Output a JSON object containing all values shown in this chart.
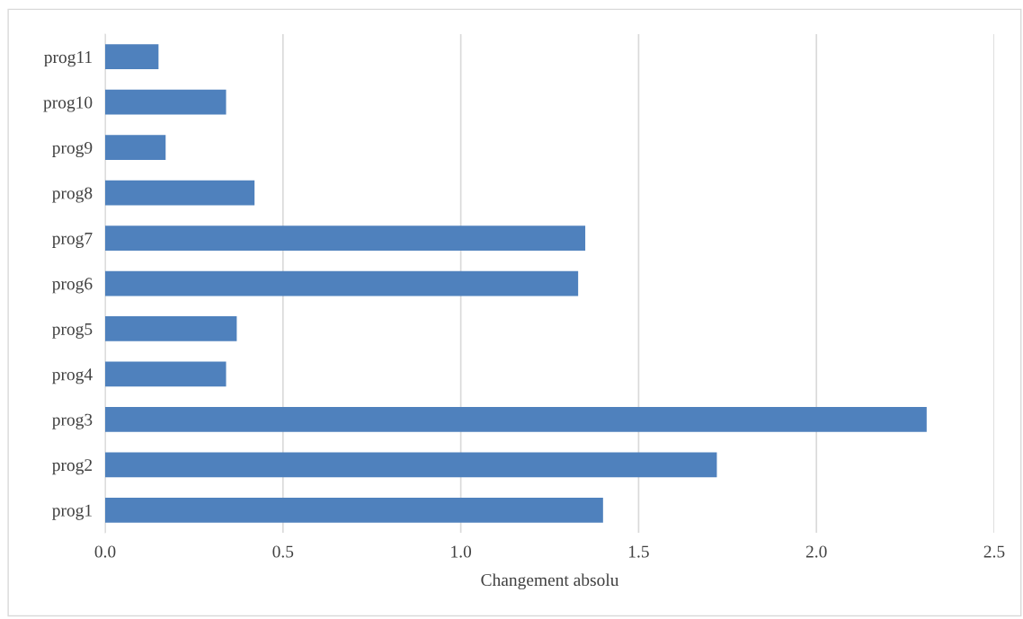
{
  "chart_data": {
    "type": "bar",
    "orientation": "horizontal",
    "xlabel": "Changement absolu",
    "categories": [
      "prog11",
      "prog10",
      "prog9",
      "prog8",
      "prog7",
      "prog6",
      "prog5",
      "prog4",
      "prog3",
      "prog2",
      "prog1"
    ],
    "values": [
      0.15,
      0.34,
      0.17,
      0.42,
      1.35,
      1.33,
      0.37,
      0.34,
      2.31,
      1.72,
      1.4
    ],
    "color": "#4f81bd",
    "xlim": [
      0,
      2.5
    ],
    "xticks": [
      {
        "value": 0,
        "label": "0.0"
      },
      0.5,
      {
        "value": 1,
        "label": "1.0"
      },
      1.5,
      {
        "value": 2,
        "label": "2.0"
      },
      2.5
    ],
    "grid": "x"
  }
}
